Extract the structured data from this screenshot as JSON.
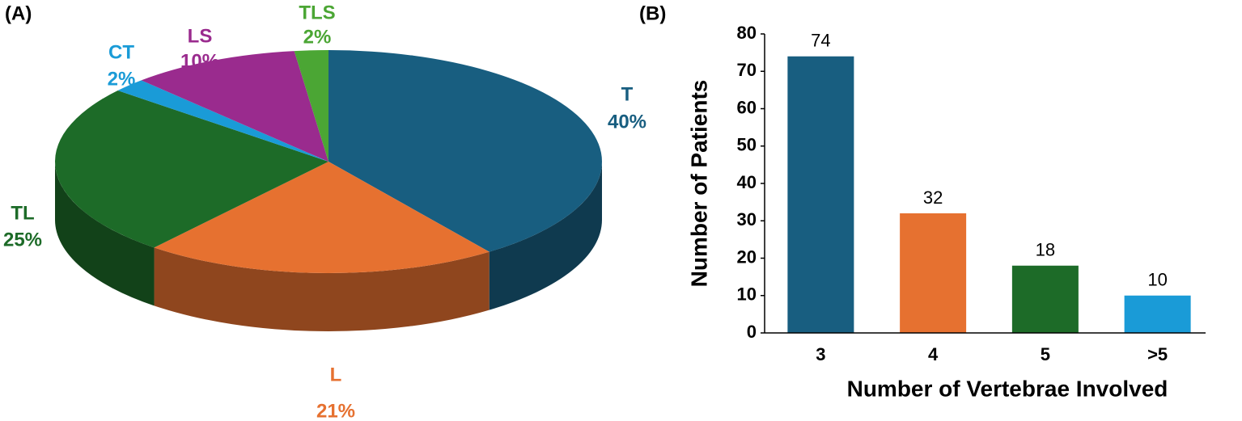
{
  "chart_data": [
    {
      "type": "pie",
      "panel_label": "(A)",
      "categories": [
        "T",
        "L",
        "TL",
        "CT",
        "LS",
        "TLS"
      ],
      "values": [
        40,
        21,
        25,
        2,
        10,
        2
      ],
      "value_labels": [
        "40%",
        "21%",
        "25%",
        "2%",
        "10%",
        "2%"
      ],
      "colors": [
        "#185e80",
        "#e67130",
        "#1d6b28",
        "#1a9bd7",
        "#9a2b8e",
        "#4ba634"
      ]
    },
    {
      "type": "bar",
      "panel_label": "(B)",
      "categories": [
        "3",
        "4",
        "5",
        ">5"
      ],
      "values": [
        74,
        32,
        18,
        10
      ],
      "colors": [
        "#185e80",
        "#e67130",
        "#1d6b28",
        "#1a9bd7"
      ],
      "xlabel": "Number of Vertebrae Involved",
      "ylabel": "Number of Patients",
      "ylim": [
        0,
        80
      ],
      "yticks": [
        0,
        10,
        20,
        30,
        40,
        50,
        60,
        70,
        80
      ]
    }
  ]
}
